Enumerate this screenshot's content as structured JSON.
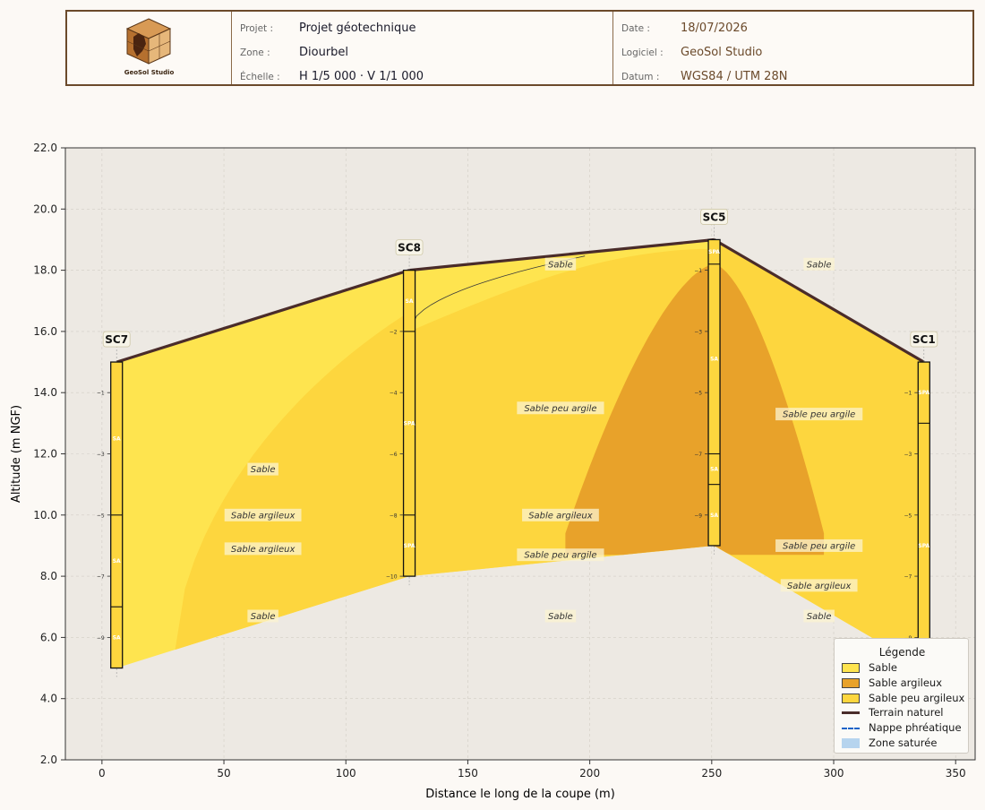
{
  "title_block": {
    "logo_text": "GeoSol Studio",
    "project_label": "Projet :",
    "project_value": "Projet géotechnique",
    "zone_label": "Zone :",
    "zone_value": "Diourbel",
    "scale_label": "Échelle :",
    "scale_value": "H 1/5 000 · V 1/1 000",
    "date_label": "Date :",
    "date_value": "18/07/2026",
    "software_label": "Logiciel :",
    "software_value": "GeoSol Studio",
    "datum_label": "Datum :",
    "datum_value": "WGS84 / UTM 28N"
  },
  "colors": {
    "sable": "#fee44f",
    "sable_argileux": "#e8a22a",
    "sable_peu_argileux": "#fdd63e",
    "terrain": "#4a2c2a",
    "plot_bg": "#ede9e3",
    "nappe": "#1e64c8",
    "zone_saturee": "#b6d4ee"
  },
  "chart_data": {
    "type": "geological_cross_section",
    "xlabel": "Distance le long de la coupe (m)",
    "ylabel": "Altitude (m NGF)",
    "xlim": [
      -15,
      358
    ],
    "ylim": [
      2.0,
      22.0
    ],
    "x_ticks": [
      "0",
      "50",
      "100",
      "150",
      "200",
      "250",
      "300",
      "350"
    ],
    "y_ticks": [
      "2.0",
      "4.0",
      "6.0",
      "8.0",
      "10.0",
      "12.0",
      "14.0",
      "16.0",
      "18.0",
      "20.0",
      "22.0"
    ],
    "grid": true,
    "legend_position": "bottom-right",
    "terrain": [
      [
        6,
        15.0
      ],
      [
        126,
        18.0
      ],
      [
        251,
        19.0
      ],
      [
        337,
        15.0
      ]
    ],
    "base": [
      [
        6,
        5.0
      ],
      [
        126,
        8.0
      ],
      [
        251,
        9.0
      ],
      [
        337,
        5.0
      ]
    ],
    "boreholes": [
      {
        "name": "SC7",
        "x": 6,
        "top": 15.0,
        "bottom": 5.0,
        "contacts": [
          10.0,
          7.0
        ],
        "depth_ticks": [
          "−1",
          "−3",
          "−5",
          "−7",
          "−9"
        ],
        "layer_codes": [
          "SA",
          "SA",
          "SA"
        ],
        "layer_code_y": [
          12.5,
          8.5,
          6.0
        ]
      },
      {
        "name": "SC8",
        "x": 126,
        "top": 18.0,
        "bottom": 8.0,
        "contacts": [
          16.0,
          10.0
        ],
        "depth_ticks": [
          "−2",
          "−4",
          "−6",
          "−8",
          "−10"
        ],
        "layer_codes": [
          "SA",
          "SPA",
          "SPA"
        ],
        "layer_code_y": [
          17.0,
          13.0,
          9.0
        ]
      },
      {
        "name": "SC5",
        "x": 251,
        "top": 19.0,
        "bottom": 9.0,
        "contacts": [
          18.2,
          12.0,
          11.0
        ],
        "depth_ticks": [
          "−1",
          "−3",
          "−5",
          "−7",
          "−9"
        ],
        "layer_codes": [
          "SPA",
          "SA",
          "SA",
          "SA"
        ],
        "layer_code_y": [
          18.6,
          15.1,
          11.5,
          10.0
        ]
      },
      {
        "name": "SC1",
        "x": 337,
        "top": 15.0,
        "bottom": 5.0,
        "contacts": [
          13.0
        ],
        "depth_ticks": [
          "−1",
          "−3",
          "−5",
          "−7",
          "−9"
        ],
        "layer_codes": [
          "SPA",
          "SPA"
        ],
        "layer_code_y": [
          14.0,
          9.0
        ]
      }
    ],
    "layer_labels": [
      {
        "text": "Sable",
        "x": 66,
        "y": 11.5
      },
      {
        "text": "Sable argileux",
        "x": 66,
        "y": 10.0
      },
      {
        "text": "Sable argileux",
        "x": 66,
        "y": 8.9
      },
      {
        "text": "Sable",
        "x": 66,
        "y": 6.7
      },
      {
        "text": "Sable",
        "x": 188,
        "y": 18.2
      },
      {
        "text": "Sable peu argile",
        "x": 188,
        "y": 13.5
      },
      {
        "text": "Sable argileux",
        "x": 188,
        "y": 10.0
      },
      {
        "text": "Sable peu argile",
        "x": 188,
        "y": 8.7
      },
      {
        "text": "Sable",
        "x": 188,
        "y": 6.7
      },
      {
        "text": "Sable",
        "x": 294,
        "y": 18.2
      },
      {
        "text": "Sable peu argile",
        "x": 294,
        "y": 13.3
      },
      {
        "text": "Sable peu argile",
        "x": 294,
        "y": 9.0
      },
      {
        "text": "Sable argileux",
        "x": 294,
        "y": 7.7
      },
      {
        "text": "Sable",
        "x": 294,
        "y": 6.7
      }
    ],
    "legend": {
      "title": "Légende",
      "items": [
        {
          "label": "Sable",
          "kind": "fill",
          "color": "#fee44f"
        },
        {
          "label": "Sable argileux",
          "kind": "fill",
          "color": "#e8a22a"
        },
        {
          "label": "Sable peu argileux",
          "kind": "fill",
          "color": "#fdd63e"
        },
        {
          "label": "Terrain naturel",
          "kind": "line",
          "color": "#4a2c2a"
        },
        {
          "label": "Nappe phréatique",
          "kind": "dash",
          "color": "#1e64c8"
        },
        {
          "label": "Zone saturée",
          "kind": "fill",
          "color": "#b6d4ee"
        }
      ]
    }
  }
}
